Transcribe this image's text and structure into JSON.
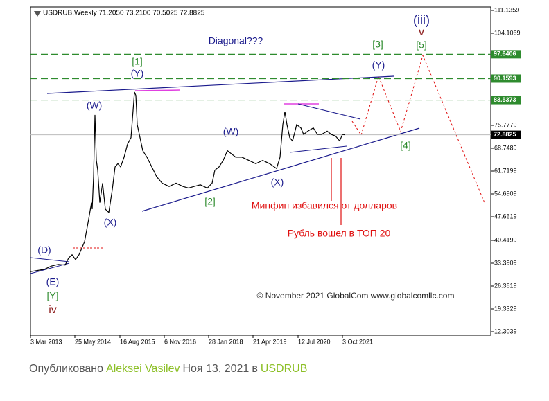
{
  "chart_data": {
    "type": "line",
    "header": "USDRUB,Weekly  71.2050 73.2100 70.5025 72.8825",
    "x": [
      0,
      20,
      30,
      40,
      50,
      55,
      60,
      65,
      70,
      78,
      84,
      88,
      89,
      91,
      93,
      95,
      97,
      100,
      104,
      108,
      113,
      118,
      122,
      126,
      130,
      135,
      140,
      145,
      150,
      152,
      154,
      158,
      162,
      168,
      175,
      182,
      190,
      200,
      210,
      220,
      228,
      236,
      245,
      255,
      262,
      266,
      272,
      278,
      284,
      290,
      296,
      305,
      315,
      325,
      335,
      345,
      355,
      360,
      364,
      367,
      370,
      374,
      378,
      384,
      390,
      394,
      400,
      408,
      414,
      420,
      428,
      434,
      440,
      446,
      450,
      453
    ],
    "series": [
      {
        "color": "#000000",
        "values": [
          30.8,
          31.5,
          32.5,
          33,
          32.8,
          35,
          36,
          34.5,
          36,
          40,
          47,
          52,
          50,
          60,
          79,
          65,
          62,
          52,
          58,
          50,
          49,
          56,
          63,
          64,
          63,
          66,
          70,
          72,
          86,
          85,
          76,
          72,
          68,
          66,
          63,
          60,
          58,
          57,
          58,
          57,
          56.5,
          57,
          57.5,
          56.5,
          58,
          62,
          63,
          65,
          68,
          67,
          66,
          66,
          65,
          64,
          65,
          64,
          62.5,
          66,
          76,
          80,
          76,
          72,
          71,
          76,
          75,
          73,
          74,
          75,
          73,
          73,
          74,
          73,
          72.5,
          71,
          73,
          72.9
        ]
      }
    ],
    "xlim": [
      0,
      664
    ],
    "xticks": [
      {
        "value": 0,
        "label": "3 Mar 2013"
      },
      {
        "value": 64,
        "label": "25 May 2014"
      },
      {
        "value": 129,
        "label": "16 Aug 2015"
      },
      {
        "value": 193,
        "label": "6 Nov 2016"
      },
      {
        "value": 257,
        "label": "28 Jan 2018"
      },
      {
        "value": 321,
        "label": "21 Apr 2019"
      },
      {
        "value": 386,
        "label": "12 Jul 2020"
      },
      {
        "value": 450,
        "label": "3 Oct 2021"
      }
    ],
    "ylim": [
      11.24,
      112.2
    ],
    "yticks": [
      111.1359,
      104.1069,
      75.7779,
      68.7489,
      61.7199,
      54.6909,
      47.6619,
      40.4199,
      33.3909,
      26.3619,
      19.3329,
      12.3039
    ],
    "price_levels": [
      97.6406,
      90.1593,
      83.5373
    ],
    "level_color": "#2e8b2e",
    "current_price": 72.8825,
    "annotations": [
      {
        "text": "(iii)",
        "color": "#1a1a8c"
      },
      {
        "text": "v",
        "color": "#8b1a1a"
      },
      {
        "text": "Diagonal???",
        "color": "#1a1a8c"
      },
      {
        "text": "[3]",
        "color": "#2e8b2e"
      },
      {
        "text": "[5]",
        "color": "#2e8b2e"
      },
      {
        "text": "(Y)",
        "color": "#1a1a8c"
      },
      {
        "text": "[1]",
        "color": "#2e8b2e"
      },
      {
        "text": "(Y)",
        "color": "#1a1a8c"
      },
      {
        "text": "(W)",
        "color": "#1a1a8c"
      },
      {
        "text": "(W)",
        "color": "#1a1a8c"
      },
      {
        "text": "(X)",
        "color": "#1a1a8c"
      },
      {
        "text": "[2]",
        "color": "#2e8b2e"
      },
      {
        "text": "[4]",
        "color": "#2e8b2e"
      },
      {
        "text": "(X)",
        "color": "#1a1a8c"
      },
      {
        "text": "(D)",
        "color": "#1a1a8c"
      },
      {
        "text": "(E)",
        "color": "#1a1a8c"
      },
      {
        "text": "[Y]",
        "color": "#2e8b2e"
      },
      {
        "text": "iv",
        "color": "#8b1a1a"
      },
      {
        "text": "Минфин избавился от долларов",
        "color": "#e01010"
      },
      {
        "text": "Рубль вошел в ТОП 20",
        "color": "#e01010"
      },
      {
        "text": "© November 2021 GlobalCom www.globalcomllc.com",
        "color": "#222222"
      }
    ]
  },
  "footer": {
    "published": "Опубликовано",
    "author": "Aleksei Vasilev",
    "date": "Ноя 13, 2021",
    "in": "в",
    "symbol": "USDRUB"
  }
}
